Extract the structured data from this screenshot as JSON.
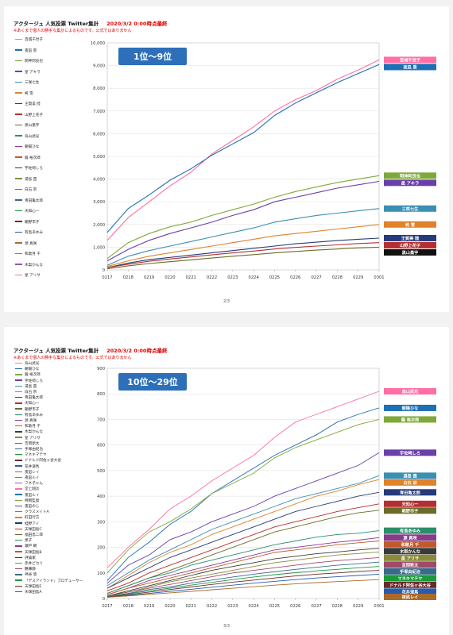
{
  "colors": {
    "series": [
      "#ff6fa5",
      "#1f6fb5",
      "#7fa83a",
      "#6a3fa8",
      "#3a8fb3",
      "#e0822a",
      "#253b7a",
      "#b43030",
      "#6b6b2a",
      "#2a8f6a",
      "#8a3a8a",
      "#c05a2a",
      "#3a3a3a",
      "#8a8a3a",
      "#a04a6a",
      "#3a6a8a",
      "#1a9a3a",
      "#6a2a2a",
      "#2a5aaa",
      "#aa6a2a",
      "#5a8a8a",
      "#8a5aaa"
    ],
    "label_bg": [
      "#ff6fa5",
      "#1f6fb5",
      "#7fa83a",
      "#6a3fa8",
      "#3a8fb3",
      "#e0822a",
      "#253b7a",
      "#b43030",
      "#111111"
    ]
  },
  "pages": [
    {
      "title": "アクタージュ 人気投票 Twitter集計",
      "date": "2020/3/2 0:00時点最終",
      "note": "※あくまで個人の勝手な集計によるものです。公式ではありません",
      "page_number": "2/3",
      "legend": [
        "百城千世子",
        "夜凪 景",
        "明神阿良也",
        "星 アキラ",
        "三咲七生",
        "柊 雪",
        "王賀美 陸",
        "山野上花子",
        "黒山墨字",
        "烏山武光",
        "朝陽ひな",
        "薩 裕次郎",
        "宇佐崎しろ",
        "湯島 茜",
        "白石 宗",
        "青田亀太郎",
        "天知心一",
        "朝野市子",
        "有島あゆみ",
        "源 真咲",
        "和歌月 千",
        "木梨かんな",
        "星 アリサ"
      ]
    },
    {
      "title": "アクタージュ 人気投票 Twitter集計",
      "date": "2020/3/2 0:00時点最終",
      "note": "※あくまで個人の勝手な集計によるものです。公式ではありません",
      "page_number": "3/3",
      "legend": [
        "烏山武光",
        "朝陽ひな",
        "薩 裕次郎",
        "宇佐崎しろ",
        "湯島 茜",
        "白石 宗",
        "青田亀太郎",
        "天知心一",
        "朝野市子",
        "有島あゆみ",
        "源 真咲",
        "和歌月 千",
        "木梨かんな",
        "星 アリサ",
        "吉岡新太",
        "手塚由紀治",
        "マネキマテヤ",
        "ドナルド阿佐ヶ谷大谷",
        "花井速馬",
        "夜凪レイ",
        "夜凪ルイ",
        "フネ子ゃん",
        "堂上翔吾",
        "夜凪ルイ",
        "時雨監督",
        "夜凪のじ",
        "クラスメイトA",
        "町田行方",
        "蛙野アイ",
        "天球田島C",
        "福田島二郎",
        "黒子",
        "瀬戸 朝",
        "天球田島B",
        "評論家",
        "赤井ピカリ",
        "鶴陣静",
        "神谷 悠",
        "「デスアイランド」プロデューサー",
        "天球田島E",
        "天球田島A"
      ]
    }
  ],
  "chart_data": [
    {
      "type": "line",
      "title": "1位〜9位",
      "x": [
        "0217",
        "0218",
        "0219",
        "0220",
        "0221",
        "0222",
        "0223",
        "0224",
        "0225",
        "0226",
        "0227",
        "0228",
        "0229",
        "0301"
      ],
      "ylim": [
        0,
        10000
      ],
      "yticks": [
        0,
        1000,
        2000,
        3000,
        4000,
        5000,
        6000,
        7000,
        8000,
        9000,
        10000
      ],
      "grid": true,
      "legend_position": "left",
      "series": [
        {
          "name": "百城千世子",
          "values": [
            1300,
            2300,
            3000,
            3700,
            4300,
            5100,
            5700,
            6300,
            7000,
            7500,
            7900,
            8400,
            8800,
            9250
          ]
        },
        {
          "name": "夜凪 景",
          "values": [
            1650,
            2700,
            3300,
            3950,
            4450,
            5050,
            5550,
            6050,
            6800,
            7350,
            7800,
            8250,
            8650,
            9050
          ]
        },
        {
          "name": "明神阿良也",
          "values": [
            500,
            1200,
            1600,
            1900,
            2100,
            2400,
            2650,
            2900,
            3200,
            3450,
            3650,
            3850,
            4000,
            4150
          ]
        },
        {
          "name": "星 アキラ",
          "values": [
            400,
            900,
            1300,
            1600,
            1850,
            2100,
            2400,
            2650,
            3000,
            3200,
            3400,
            3600,
            3750,
            3900
          ]
        },
        {
          "name": "三咲七生",
          "values": [
            200,
            600,
            850,
            1050,
            1250,
            1450,
            1650,
            1850,
            2100,
            2250,
            2400,
            2500,
            2600,
            2700
          ]
        },
        {
          "name": "柊 雪",
          "values": [
            150,
            400,
            600,
            750,
            900,
            1050,
            1200,
            1350,
            1500,
            1600,
            1700,
            1800,
            1900,
            2000
          ]
        },
        {
          "name": "王賀美 陸",
          "values": [
            100,
            300,
            450,
            550,
            650,
            750,
            850,
            950,
            1050,
            1150,
            1220,
            1290,
            1350,
            1400
          ]
        },
        {
          "name": "山野上花子",
          "values": [
            100,
            250,
            380,
            480,
            570,
            660,
            750,
            830,
            920,
            990,
            1050,
            1100,
            1160,
            1200
          ]
        },
        {
          "name": "黒山墨字",
          "values": [
            50,
            180,
            280,
            360,
            440,
            520,
            600,
            670,
            750,
            810,
            870,
            920,
            970,
            1000
          ]
        }
      ],
      "end_labels": [
        "百城千世子",
        "夜凪 景",
        "明神阿良也",
        "星 アキラ",
        "三咲七生",
        "柊 雪",
        "王賀美 陸",
        "山野上花子",
        "黒山墨字"
      ]
    },
    {
      "type": "line",
      "title": "10位〜29位",
      "x": [
        "0217",
        "0218",
        "0219",
        "0220",
        "0221",
        "0222",
        "0223",
        "0224",
        "0225",
        "0226",
        "0227",
        "0228",
        "0229",
        "0301"
      ],
      "ylim": [
        0,
        900
      ],
      "yticks": [
        0,
        100,
        200,
        300,
        400,
        500,
        600,
        700,
        800,
        900
      ],
      "grid": true,
      "legend_position": "left",
      "series": [
        {
          "name": "烏山武光",
          "values": [
            120,
            200,
            270,
            350,
            400,
            460,
            510,
            560,
            630,
            690,
            720,
            750,
            780,
            810
          ]
        },
        {
          "name": "朝陽ひな",
          "values": [
            70,
            160,
            220,
            290,
            340,
            410,
            460,
            510,
            560,
            600,
            640,
            690,
            720,
            745
          ]
        },
        {
          "name": "薩 裕次郎",
          "values": [
            100,
            190,
            260,
            300,
            350,
            410,
            450,
            490,
            550,
            590,
            620,
            650,
            680,
            700
          ]
        },
        {
          "name": "宇佐崎しろ",
          "values": [
            60,
            130,
            170,
            230,
            260,
            300,
            330,
            360,
            400,
            430,
            460,
            490,
            520,
            570
          ]
        },
        {
          "name": "湯島 茜",
          "values": [
            50,
            100,
            150,
            190,
            230,
            270,
            300,
            330,
            360,
            390,
            410,
            430,
            450,
            480
          ]
        },
        {
          "name": "白石 宗",
          "values": [
            40,
            90,
            140,
            180,
            210,
            250,
            280,
            310,
            340,
            370,
            400,
            420,
            445,
            465
          ]
        },
        {
          "name": "青田亀太郎",
          "values": [
            40,
            80,
            120,
            160,
            190,
            220,
            250,
            280,
            310,
            340,
            360,
            380,
            400,
            415
          ]
        },
        {
          "name": "天知心一",
          "values": [
            30,
            60,
            100,
            130,
            160,
            190,
            220,
            250,
            280,
            300,
            320,
            340,
            355,
            370
          ]
        },
        {
          "name": "朝野市子",
          "values": [
            20,
            50,
            80,
            110,
            140,
            170,
            200,
            230,
            260,
            280,
            300,
            320,
            335,
            345
          ]
        },
        {
          "name": "有島あゆみ",
          "values": [
            20,
            50,
            80,
            100,
            130,
            150,
            170,
            190,
            210,
            225,
            240,
            250,
            255,
            265
          ]
        },
        {
          "name": "源 真咲",
          "values": [
            15,
            40,
            70,
            90,
            110,
            130,
            150,
            170,
            190,
            200,
            210,
            220,
            228,
            238
          ]
        },
        {
          "name": "和歌月 千",
          "values": [
            15,
            40,
            60,
            80,
            100,
            120,
            140,
            160,
            180,
            190,
            200,
            210,
            218,
            225
          ]
        },
        {
          "name": "木梨かんな",
          "values": [
            10,
            30,
            50,
            70,
            90,
            110,
            125,
            140,
            155,
            165,
            175,
            182,
            190,
            196
          ]
        },
        {
          "name": "星 アリサ",
          "values": [
            10,
            25,
            45,
            65,
            80,
            95,
            110,
            125,
            140,
            150,
            160,
            170,
            176,
            182
          ]
        },
        {
          "name": "吉岡新太",
          "values": [
            10,
            25,
            40,
            55,
            70,
            85,
            100,
            110,
            120,
            130,
            140,
            148,
            154,
            160
          ]
        },
        {
          "name": "手塚由紀治",
          "values": [
            8,
            20,
            35,
            45,
            60,
            72,
            84,
            95,
            105,
            114,
            122,
            130,
            136,
            142
          ]
        },
        {
          "name": "マネキマテヤ",
          "values": [
            8,
            18,
            30,
            40,
            52,
            63,
            74,
            84,
            93,
            101,
            108,
            114,
            120,
            125
          ]
        },
        {
          "name": "ドナルド阿佐ヶ谷大谷",
          "values": [
            6,
            15,
            25,
            35,
            45,
            55,
            64,
            72,
            80,
            88,
            95,
            100,
            106,
            110
          ]
        },
        {
          "name": "花井速馬",
          "values": [
            5,
            12,
            20,
            28,
            36,
            44,
            52,
            60,
            67,
            74,
            80,
            85,
            90,
            95
          ]
        },
        {
          "name": "夜凪レイ",
          "values": [
            5,
            10,
            16,
            22,
            28,
            34,
            40,
            46,
            52,
            57,
            62,
            66,
            70,
            74
          ]
        }
      ],
      "end_labels": [
        "烏山武光",
        "朝陽ひな",
        "薩 裕次郎",
        "宇佐崎しろ",
        "湯島 茜",
        "白石 宗",
        "青田亀太郎",
        "天知心一",
        "朝野市子",
        "有島あゆみ",
        "源 真咲",
        "和歌月 千",
        "木梨かんな",
        "星 アリサ",
        "吉岡新太",
        "手塚由紀治",
        "マネキマテヤ",
        "ドナルド阿佐ヶ谷大谷",
        "花井速馬",
        "夜凪レイ"
      ]
    }
  ]
}
